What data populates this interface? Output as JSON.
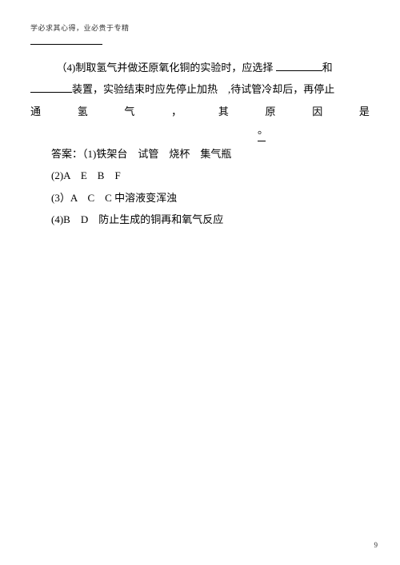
{
  "header": "学必求其心得，业必贵于专精",
  "q4": {
    "prefix": "（4)制取氢气并做还原氧化铜的实验时，应选择",
    "and": "和",
    "line2a": "装置，实验结束时应先停止加热",
    "line2b": ",待试管冷却后，再停止",
    "spread": [
      "通",
      "氢",
      "气",
      "，",
      "其",
      "原",
      "因",
      "是"
    ],
    "period": "。"
  },
  "answers": {
    "a1": "答案：（1)铁架台　试管　烧杯　集气瓶",
    "a2": "(2)A　E　B　F",
    "a3": "(3）A　C　C 中溶液变浑浊",
    "a4": "(4)B　D　防止生成的铜再和氧气反应"
  },
  "pageNum": "9"
}
